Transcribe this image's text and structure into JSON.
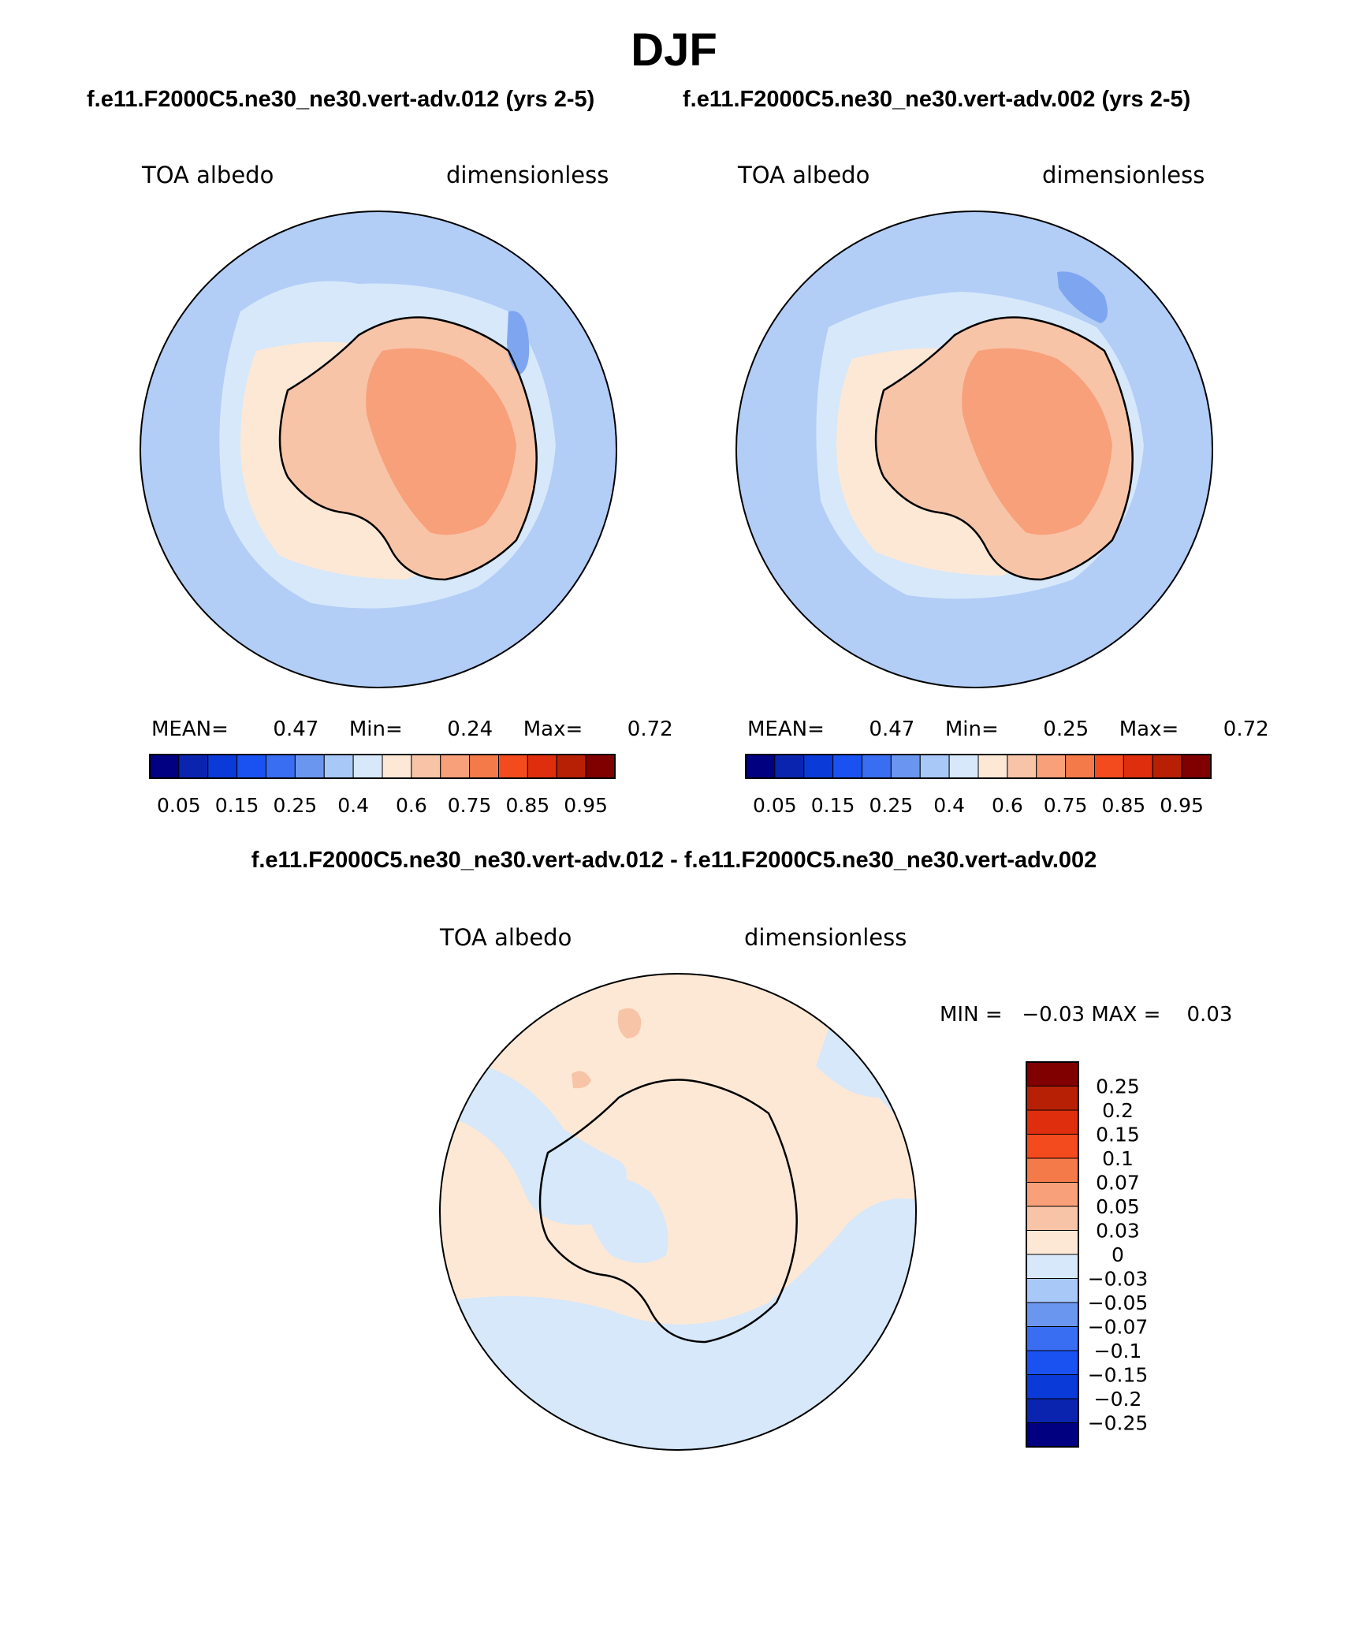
{
  "page_title": "DJF",
  "panels": [
    {
      "case": "f.e11.F2000C5.ne30_ne30.vert-adv.012 (yrs 2-5)",
      "variable": "TOA albedo",
      "units": "dimensionless",
      "stats": {
        "mean_label": "MEAN=",
        "mean": "0.47",
        "min_label": "Min=",
        "min": "0.24",
        "max_label": "Max=",
        "max": "0.72"
      }
    },
    {
      "case": "f.e11.F2000C5.ne30_ne30.vert-adv.002 (yrs 2-5)",
      "variable": "TOA albedo",
      "units": "dimensionless",
      "stats": {
        "mean_label": "MEAN=",
        "mean": "0.47",
        "min_label": "Min=",
        "min": "0.25",
        "max_label": "Max=",
        "max": "0.72"
      }
    }
  ],
  "diff": {
    "title": "f.e11.F2000C5.ne30_ne30.vert-adv.012 - f.e11.F2000C5.ne30_ne30.vert-adv.002",
    "variable": "TOA albedo",
    "units": "dimensionless",
    "minmax": "MIN =   −0.03 MAX =    0.03"
  },
  "abs_colorbar": {
    "colors": [
      "#000080",
      "#0a24b0",
      "#0a3ad8",
      "#1a52f2",
      "#3a6ef2",
      "#6a96f0",
      "#a8c8f8",
      "#d6e8fa",
      "#fde8d6",
      "#f8c4a8",
      "#f7a07a",
      "#f57a4a",
      "#f34a1e",
      "#de2e0e",
      "#b82006",
      "#800000"
    ],
    "labels": [
      "0.05",
      "0.15",
      "0.25",
      "0.4",
      "0.6",
      "0.75",
      "0.85",
      "0.95"
    ]
  },
  "diff_colorbar": {
    "colors": [
      "#000080",
      "#0a24b0",
      "#0a3ad8",
      "#1a52f2",
      "#3a6ef2",
      "#6a96f0",
      "#a8c8f8",
      "#d6e8fa",
      "#fde8d6",
      "#f8c4a8",
      "#f7a07a",
      "#f57a4a",
      "#f34a1e",
      "#de2e0e",
      "#b82006",
      "#800000"
    ],
    "labels": [
      "0.25",
      "0.2",
      "0.15",
      "0.1",
      "0.07",
      "0.05",
      "0.03",
      "0",
      "−0.03",
      "−0.05",
      "−0.07",
      "−0.1",
      "−0.15",
      "−0.2",
      "−0.25"
    ]
  },
  "map_colors": {
    "ocean": "#b2cdf6",
    "ice_edge": "#d6e8fa",
    "land_low": "#f8c4a8",
    "land_high": "#f7a07a",
    "blue_patch": "#7ea6f0",
    "diff_pos": "#fde8d6",
    "diff_neg": "#d6e8fa",
    "diff_pos_strong": "#f8c4a8"
  }
}
